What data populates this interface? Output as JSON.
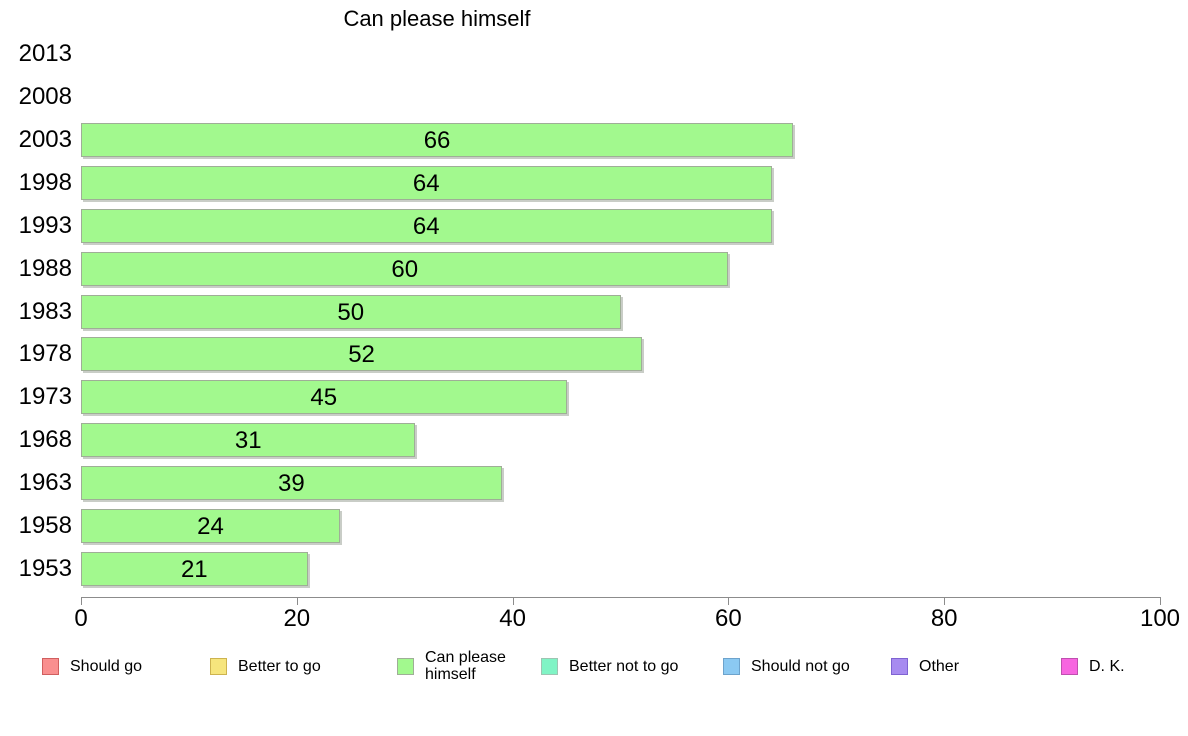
{
  "chart_data": {
    "type": "bar",
    "orientation": "horizontal",
    "title": "Can please himself",
    "categories": [
      "2013",
      "2008",
      "2003",
      "1998",
      "1993",
      "1988",
      "1983",
      "1978",
      "1973",
      "1968",
      "1963",
      "1958",
      "1953"
    ],
    "values": [
      null,
      null,
      66,
      64,
      64,
      60,
      50,
      52,
      45,
      31,
      39,
      24,
      21
    ],
    "xlim": [
      0,
      100
    ],
    "x_ticks": [
      0,
      20,
      40,
      60,
      80,
      100
    ],
    "grid": "off",
    "bar_fill": "#a2f98e",
    "bar_border": "#9fae97",
    "axis_color": "#8c8c8c",
    "legend_position": "bottom",
    "legend": [
      {
        "label": "Should go",
        "fill": "#f98f8f",
        "border": "#d05f5f"
      },
      {
        "label": "Better to go",
        "fill": "#f6e57d",
        "border": "#cdb34f"
      },
      {
        "label": "Can please himself",
        "fill": "#a2f98e",
        "border": "#9fae97"
      },
      {
        "label": "Better not to go",
        "fill": "#80f4c5",
        "border": "#9ec4b2"
      },
      {
        "label": "Should not go",
        "fill": "#8bc9f2",
        "border": "#6da3cc"
      },
      {
        "label": "Other",
        "fill": "#a78bf0",
        "border": "#7f63d2"
      },
      {
        "label": "D. K.",
        "fill": "#f765e0",
        "border": "#c04fb0"
      }
    ]
  }
}
